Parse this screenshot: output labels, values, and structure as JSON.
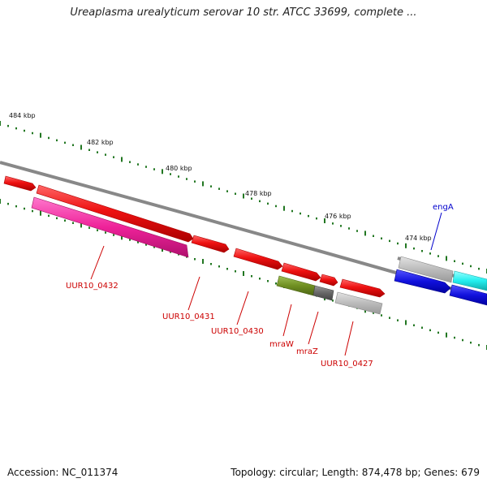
{
  "title": "Ureaplasma urealyticum serovar 10 str. ATCC 33699, complete ...",
  "footer": {
    "accession": "Accession: NC_011374",
    "summary": "Topology: circular; Length: 874,478 bp; Genes: 679"
  },
  "ticks": [
    {
      "label": "484 kbp"
    },
    {
      "label": "482 kbp"
    },
    {
      "label": "480 kbp"
    },
    {
      "label": "478 kbp"
    },
    {
      "label": "476 kbp"
    },
    {
      "label": "474 kbp"
    }
  ],
  "gene_labels": [
    {
      "name": "UUR10_0432",
      "color": "#cc0000"
    },
    {
      "name": "UUR10_0431",
      "color": "#cc0000"
    },
    {
      "name": "UUR10_0430",
      "color": "#cc0000"
    },
    {
      "name": "mraW",
      "color": "#cc0000"
    },
    {
      "name": "mraZ",
      "color": "#cc0000"
    },
    {
      "name": "UUR10_0427",
      "color": "#cc0000"
    },
    {
      "name": "engA",
      "color": "#0000cc"
    }
  ],
  "colors": {
    "cds": "#ee1111",
    "pink": "#ee2299",
    "olive": "#6f8f22",
    "grey_gene": "#bbbbbb",
    "cyan": "#22eeee",
    "blue": "#1111dd",
    "backbone": "#888888",
    "tick": "#227722"
  }
}
